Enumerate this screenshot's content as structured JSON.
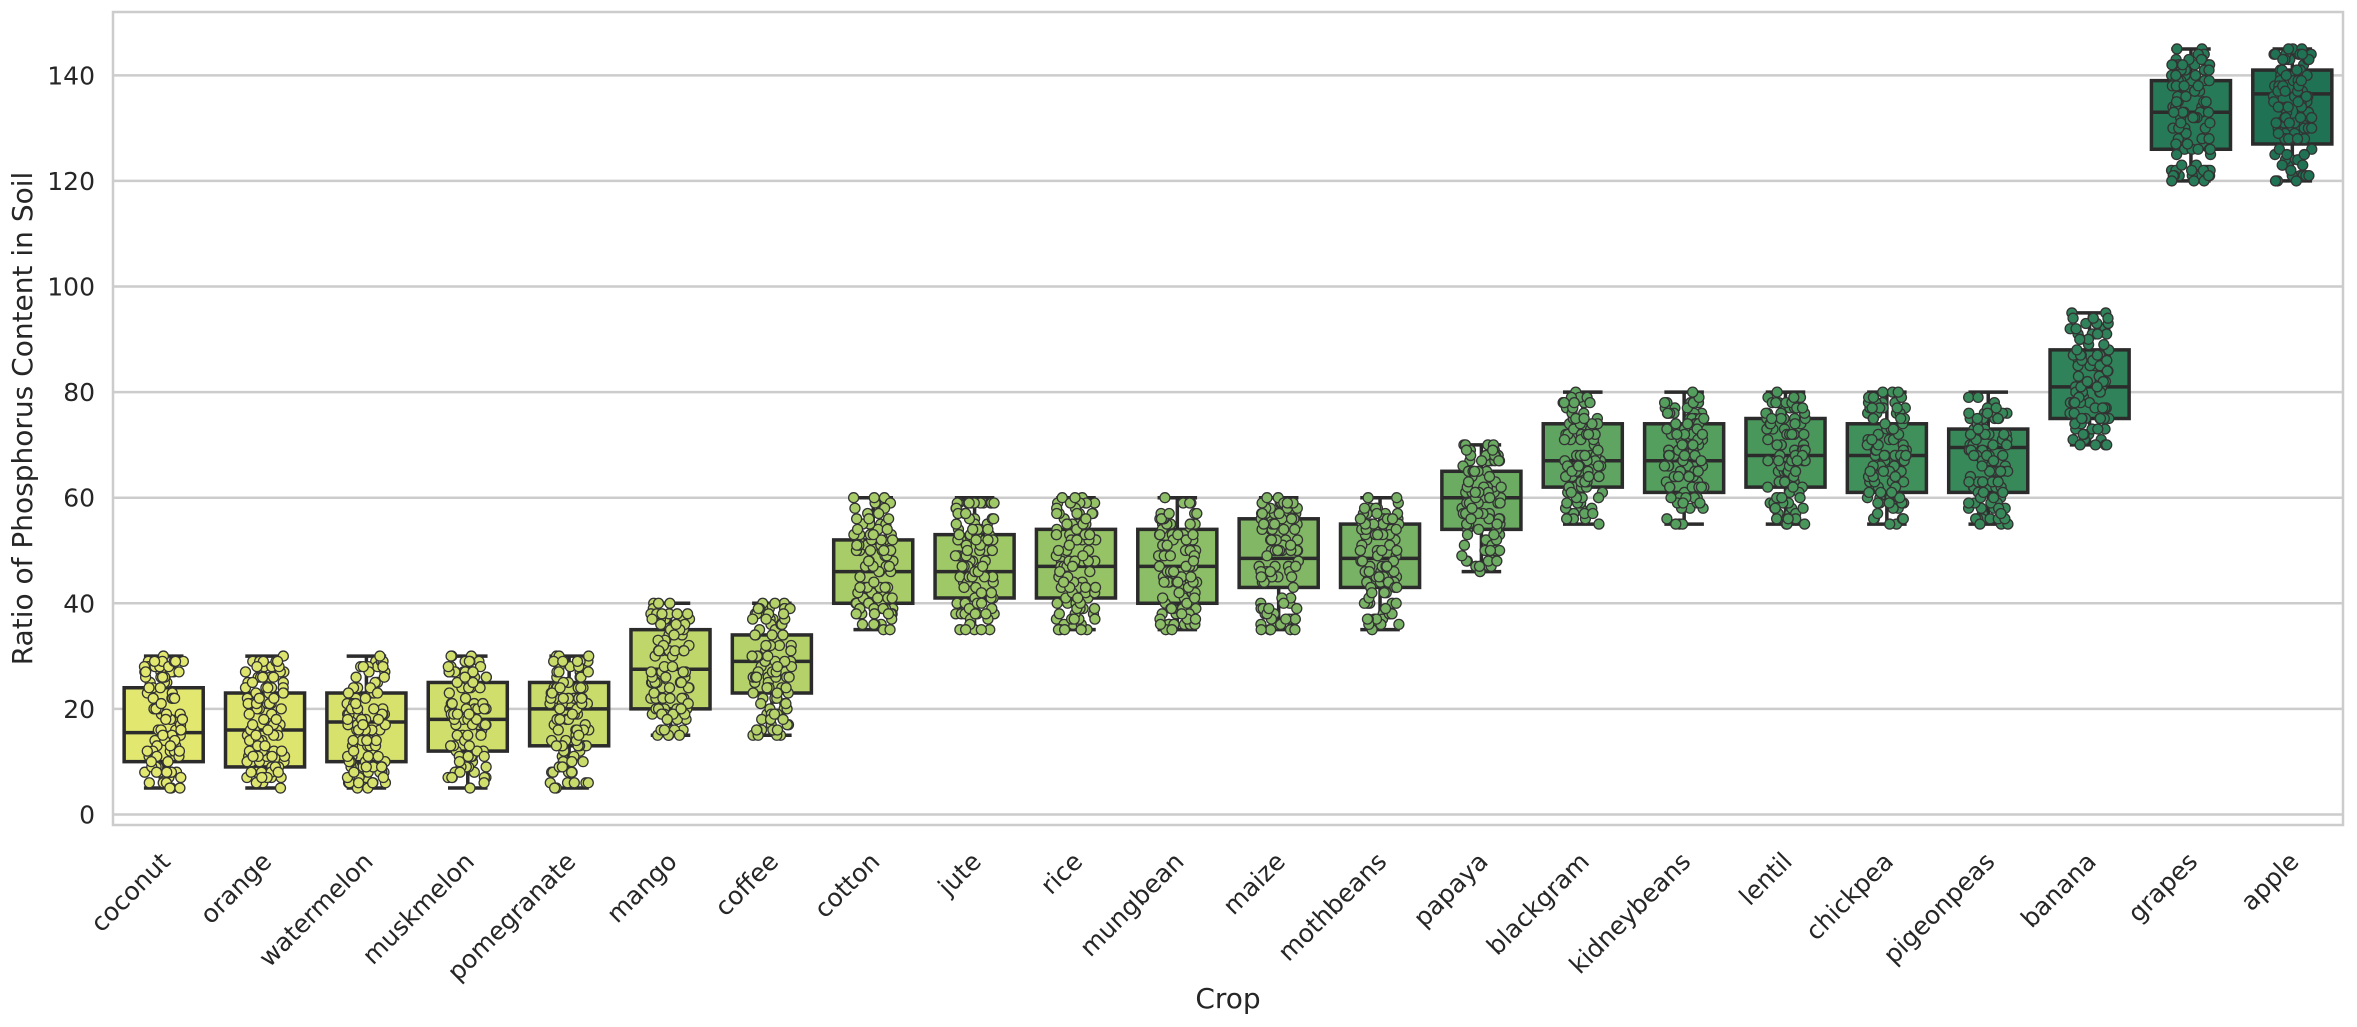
{
  "chart_data": {
    "type": "box",
    "title": "",
    "xlabel": "Crop",
    "ylabel": "Ratio of Phosphorus Content in Soil",
    "ylim": [
      -2,
      152
    ],
    "yticks": [
      0,
      20,
      40,
      60,
      80,
      100,
      120,
      140
    ],
    "grid": "horizontal",
    "overlay": "strip (jittered points)",
    "categories": [
      "coconut",
      "orange",
      "watermelon",
      "muskmelon",
      "pomegranate",
      "mango",
      "coffee",
      "cotton",
      "jute",
      "rice",
      "mungbean",
      "maize",
      "mothbeans",
      "papaya",
      "blackgram",
      "kidneybeans",
      "lentil",
      "chickpea",
      "pigeonpeas",
      "banana",
      "grapes",
      "apple"
    ],
    "boxes": [
      {
        "crop": "coconut",
        "min": 5,
        "q1": 10,
        "median": 15.5,
        "q3": 24,
        "max": 30,
        "color": "#e2e76f"
      },
      {
        "crop": "orange",
        "min": 5,
        "q1": 9,
        "median": 16,
        "q3": 23,
        "max": 30,
        "color": "#dde56e"
      },
      {
        "crop": "watermelon",
        "min": 5,
        "q1": 10,
        "median": 17.5,
        "q3": 23,
        "max": 30,
        "color": "#d7e26d"
      },
      {
        "crop": "muskmelon",
        "min": 5,
        "q1": 12,
        "median": 18,
        "q3": 25,
        "max": 30,
        "color": "#d0df6c"
      },
      {
        "crop": "pomegranate",
        "min": 5,
        "q1": 13,
        "median": 20,
        "q3": 25,
        "max": 30,
        "color": "#c8db6b"
      },
      {
        "crop": "mango",
        "min": 15,
        "q1": 20,
        "median": 27.5,
        "q3": 35,
        "max": 40,
        "color": "#bfd76a"
      },
      {
        "crop": "coffee",
        "min": 15,
        "q1": 23,
        "median": 29,
        "q3": 34,
        "max": 40,
        "color": "#b4d269"
      },
      {
        "crop": "cotton",
        "min": 35,
        "q1": 40,
        "median": 46,
        "q3": 52,
        "max": 60,
        "color": "#a8cd68"
      },
      {
        "crop": "jute",
        "min": 35,
        "q1": 41,
        "median": 46,
        "q3": 53,
        "max": 60,
        "color": "#9fc867"
      },
      {
        "crop": "rice",
        "min": 35,
        "q1": 41,
        "median": 47,
        "q3": 54,
        "max": 60,
        "color": "#95c366"
      },
      {
        "crop": "mungbean",
        "min": 35,
        "q1": 40,
        "median": 47,
        "q3": 54,
        "max": 60,
        "color": "#8bbe66"
      },
      {
        "crop": "maize",
        "min": 35,
        "q1": 43,
        "median": 48.5,
        "q3": 56,
        "max": 60,
        "color": "#82b865"
      },
      {
        "crop": "mothbeans",
        "min": 35,
        "q1": 43,
        "median": 48.5,
        "q3": 55,
        "max": 60,
        "color": "#78b264"
      },
      {
        "crop": "papaya",
        "min": 46,
        "q1": 54,
        "median": 60,
        "q3": 65,
        "max": 70,
        "color": "#6bab62"
      },
      {
        "crop": "blackgram",
        "min": 55,
        "q1": 62,
        "median": 67,
        "q3": 74,
        "max": 80,
        "color": "#5fa460"
      },
      {
        "crop": "kidneybeans",
        "min": 55,
        "q1": 61,
        "median": 67,
        "q3": 74,
        "max": 80,
        "color": "#549e5e"
      },
      {
        "crop": "lentil",
        "min": 55,
        "q1": 62,
        "median": 68,
        "q3": 75,
        "max": 80,
        "color": "#4a975c"
      },
      {
        "crop": "chickpea",
        "min": 55,
        "q1": 61,
        "median": 68,
        "q3": 74,
        "max": 80,
        "color": "#40905b"
      },
      {
        "crop": "pigeonpeas",
        "min": 55,
        "q1": 61,
        "median": 69.5,
        "q3": 73,
        "max": 80,
        "color": "#38895a"
      },
      {
        "crop": "banana",
        "min": 70,
        "q1": 75,
        "median": 81,
        "q3": 88,
        "max": 95,
        "color": "#2f8259"
      },
      {
        "crop": "grapes",
        "min": 120,
        "q1": 126,
        "median": 133,
        "q3": 139,
        "max": 145,
        "color": "#277a57"
      },
      {
        "crop": "apple",
        "min": 120,
        "q1": 127,
        "median": 136.5,
        "q3": 141,
        "max": 145,
        "color": "#207255"
      }
    ]
  }
}
